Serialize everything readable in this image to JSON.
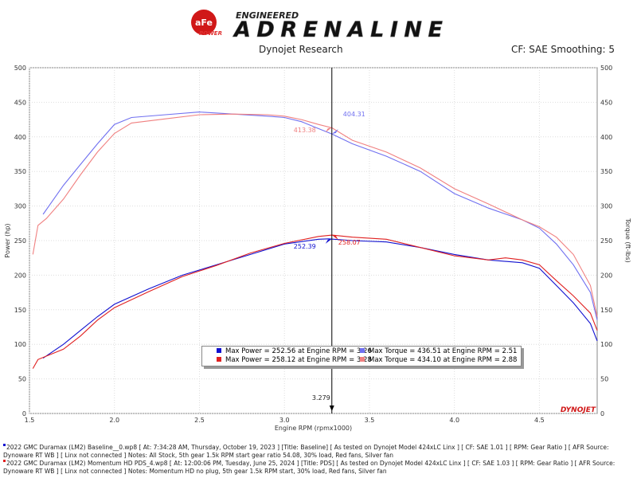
{
  "header": {
    "logo_brand": "aFe POWER",
    "logo_tagline_top": "ENGINEERED",
    "logo_tagline_main": "ADRENALINE",
    "center_title": "Dynojet Research",
    "right_info": "CF: SAE Smoothing: 5"
  },
  "footer_logo": "DYNOJET",
  "notes": [
    {
      "color": "#1010d0",
      "text": "2022 GMC Duramax (LM2) Baseline__0.wp8 [ At: 7:34:28 AM, Thursday, October 19, 2023 ] [Title: Baseline]  [ As tested on Dynojet Model 424xLC Linx ] [ CF: SAE 1.01 ] [ RPM: Gear Ratio ] [ AFR Source: Dynoware RT WB ] [ Linx not connected ] Notes: All Stock, 5th gear 1.5k RPM start gear ratio 54.08, 30% load, Red fans, Silver fan"
    },
    {
      "color": "#e02020",
      "text": "2022 GMC Duramax (LM2) Momentum HD PDS_4.wp8 [ At: 12:00:06 PM, Tuesday, June 25, 2024 ] [Title: PDS]  [ As tested on Dynojet Model 424xLC Linx ] [ CF: SAE 1.03 ] [ RPM: Gear Ratio ] [ AFR Source: Dynoware RT WB ] [ Linx not connected ] Notes: Momentum HD no plug, 5th gear 1.5k RPM start, 30% load, Red fans, Silver fan"
    }
  ],
  "legend": [
    {
      "color": "#1010d0",
      "text": "Max Power = 252.56 at Engine RPM = 3.26"
    },
    {
      "color": "#7070f0",
      "text": "Max Torque = 436.51 at Engine RPM = 2.51"
    },
    {
      "color": "#e02020",
      "text": "Max Power = 258.12 at Engine RPM = 3.28"
    },
    {
      "color": "#f08080",
      "text": "Max Torque = 434.10 at Engine RPM = 2.88"
    }
  ],
  "chart_data": {
    "type": "line",
    "xlabel": "Engine RPM (rpmx1000)",
    "ylabel": "Power (hp)",
    "y2label": "Torque (ft-lbs)",
    "xlim": [
      1.5,
      4.84
    ],
    "ylim": [
      0,
      500
    ],
    "y2lim": [
      0,
      500
    ],
    "xticks": [
      "1.5",
      "2.0",
      "2.5",
      "3.0",
      "3.5",
      "4.0",
      "4.5"
    ],
    "yticks": [
      "0",
      "50",
      "100",
      "150",
      "200",
      "250",
      "300",
      "350",
      "400",
      "450",
      "500"
    ],
    "grid": true,
    "cursor": {
      "x": 3.279,
      "label": "3.279"
    },
    "cursor_labels": [
      {
        "text": "404.31",
        "color": "#7070f0",
        "y": 404.31
      },
      {
        "text": "413.38",
        "color": "#f08080",
        "y": 413.38
      },
      {
        "text": "252.39",
        "color": "#1010d0",
        "y": 252.39
      },
      {
        "text": "258.07",
        "color": "#e02020",
        "y": 258.07
      }
    ],
    "series": [
      {
        "color": "#7070f0",
        "axis": "right",
        "x": [
          1.58,
          1.7,
          1.8,
          1.9,
          2.0,
          2.1,
          2.3,
          2.5,
          2.7,
          2.9,
          3.0,
          3.1,
          3.2,
          3.28,
          3.4,
          3.6,
          3.8,
          4.0,
          4.2,
          4.4,
          4.5,
          4.6,
          4.7,
          4.8,
          4.84
        ],
        "y": [
          288,
          330,
          360,
          390,
          418,
          428,
          432,
          436,
          433,
          430,
          428,
          422,
          412,
          404,
          390,
          372,
          350,
          318,
          297,
          280,
          268,
          245,
          215,
          175,
          135
        ]
      },
      {
        "color": "#f08080",
        "axis": "right",
        "x": [
          1.52,
          1.55,
          1.6,
          1.7,
          1.8,
          1.9,
          2.0,
          2.1,
          2.3,
          2.5,
          2.7,
          2.9,
          3.0,
          3.1,
          3.2,
          3.28,
          3.4,
          3.6,
          3.8,
          4.0,
          4.2,
          4.4,
          4.5,
          4.6,
          4.7,
          4.8,
          4.84
        ],
        "y": [
          230,
          272,
          282,
          310,
          345,
          378,
          405,
          420,
          426,
          432,
          433,
          432,
          430,
          425,
          418,
          413,
          395,
          378,
          355,
          325,
          303,
          280,
          270,
          255,
          230,
          185,
          140
        ]
      },
      {
        "color": "#1010d0",
        "axis": "left",
        "x": [
          1.58,
          1.7,
          1.8,
          1.9,
          2.0,
          2.2,
          2.4,
          2.6,
          2.8,
          3.0,
          3.2,
          3.26,
          3.4,
          3.6,
          3.8,
          4.0,
          4.2,
          4.4,
          4.5,
          4.6,
          4.7,
          4.8,
          4.84
        ],
        "y": [
          80,
          100,
          120,
          140,
          158,
          180,
          200,
          215,
          230,
          245,
          252,
          252.5,
          250,
          248,
          240,
          230,
          222,
          218,
          210,
          185,
          160,
          130,
          105
        ]
      },
      {
        "color": "#e02020",
        "axis": "left",
        "x": [
          1.52,
          1.55,
          1.7,
          1.8,
          1.9,
          2.0,
          2.2,
          2.4,
          2.6,
          2.8,
          3.0,
          3.2,
          3.28,
          3.4,
          3.6,
          3.8,
          4.0,
          4.2,
          4.3,
          4.4,
          4.5,
          4.6,
          4.7,
          4.8,
          4.84
        ],
        "y": [
          65,
          78,
          93,
          112,
          135,
          153,
          176,
          198,
          214,
          232,
          246,
          256,
          258,
          255,
          252,
          240,
          228,
          222,
          225,
          222,
          215,
          192,
          170,
          145,
          120
        ]
      }
    ]
  }
}
